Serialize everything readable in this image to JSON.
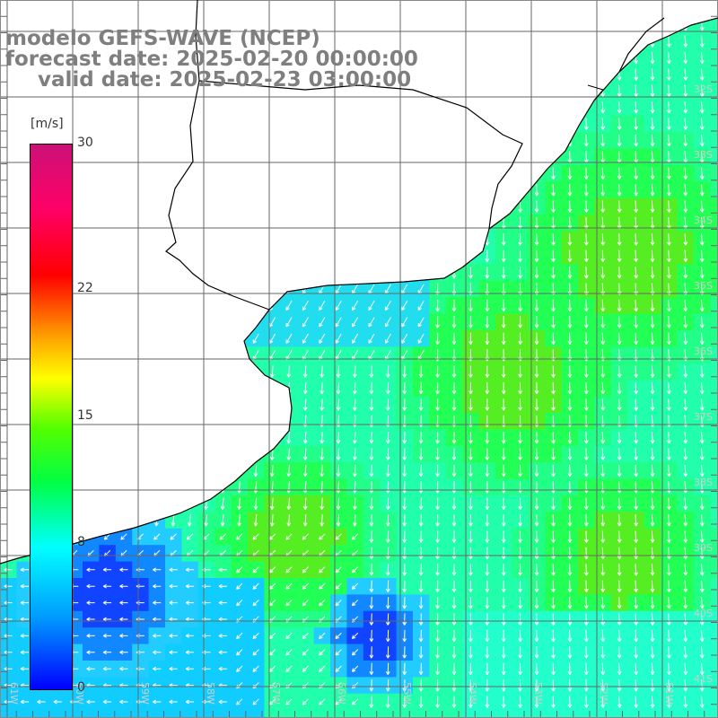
{
  "title": {
    "line1": "modelo GEFS-WAVE (NCEP)",
    "line2": "forecast date: 2025-02-20 00:00:00",
    "line3": "valid date: 2025-02-23 03:00:00"
  },
  "colorbar": {
    "units": "[m/s]",
    "ticks": [
      {
        "label": "30",
        "value": 30
      },
      {
        "label": "22",
        "value": 22
      },
      {
        "label": "15",
        "value": 15
      },
      {
        "label": "8",
        "value": 8
      },
      {
        "label": "0",
        "value": 0
      }
    ]
  },
  "lat_labels": [
    "32S",
    "33S",
    "34S",
    "35S",
    "36S",
    "37S",
    "38S",
    "39S",
    "40S",
    "41S"
  ],
  "lon_labels": [
    "61W",
    "60W",
    "59W",
    "58W",
    "57W",
    "56W",
    "55W",
    "54W",
    "53W",
    "52W",
    "51W"
  ],
  "colors": {
    "land": "#ffffff",
    "grid": "#606060",
    "coast": "#000000",
    "arrows": "#ffffff",
    "title": "#7f7f7f"
  }
}
